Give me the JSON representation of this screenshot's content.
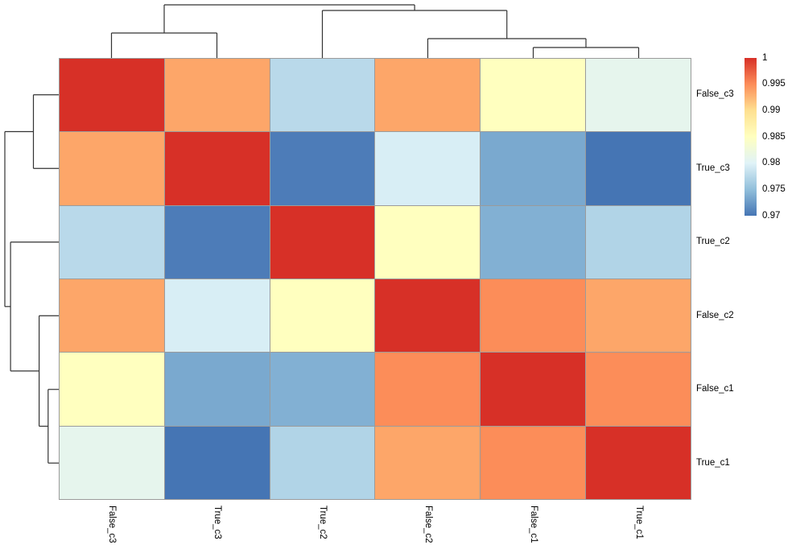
{
  "chart_data": {
    "type": "heatmap",
    "title": "",
    "description": "Clustered correlation heatmap (clustermap) with column dendrogram on top, row dendrogram on left, and a continuous colorbar legend on the right",
    "columns": [
      "False_c3",
      "True_c3",
      "True_c2",
      "False_c2",
      "False_c1",
      "True_c1"
    ],
    "rows": [
      "False_c3",
      "True_c3",
      "True_c2",
      "False_c2",
      "False_c1",
      "True_c1"
    ],
    "matrix": [
      [
        1.0,
        0.9935,
        0.9775,
        0.9935,
        0.985,
        0.981
      ],
      [
        0.9935,
        1.0,
        0.9705,
        0.9795,
        0.9735,
        0.97
      ],
      [
        0.9775,
        0.9705,
        1.0,
        0.985,
        0.974,
        0.977
      ],
      [
        0.9935,
        0.9795,
        0.985,
        1.0,
        0.995,
        0.9935
      ],
      [
        0.985,
        0.9735,
        0.974,
        0.995,
        1.0,
        0.995
      ],
      [
        0.981,
        0.97,
        0.977,
        0.9935,
        0.995,
        1.0
      ]
    ],
    "colormap": {
      "name": "RdYlBu_r",
      "domain": [
        0.97,
        1.0
      ],
      "stops": [
        "#4575B4",
        "#91BFDB",
        "#E0F3F8",
        "#FFFFBF",
        "#FEE090",
        "#FC8D59",
        "#D73027"
      ]
    },
    "colorbar": {
      "ticks": [
        "1",
        "0.995",
        "0.99",
        "0.985",
        "0.98",
        "0.975",
        "0.97"
      ],
      "tick_values": [
        1.0,
        0.995,
        0.99,
        0.985,
        0.98,
        0.975,
        0.97
      ]
    },
    "grid_line_color": "#9B9B9B",
    "dendrogram_line_color": "#333333",
    "col_dendrogram": {
      "leaf_order": [
        "False_c3",
        "True_c3",
        "True_c2",
        "False_c2",
        "False_c1",
        "True_c1"
      ],
      "merges": [
        [
          4,
          5,
          0.197
        ],
        [
          3,
          6,
          0.364
        ],
        [
          0,
          1,
          0.47
        ],
        [
          2,
          7,
          0.894
        ],
        [
          8,
          9,
          1.0
        ]
      ]
    },
    "row_dendrogram": {
      "leaf_order": [
        "False_c3",
        "True_c3",
        "True_c2",
        "False_c2",
        "False_c1",
        "True_c1"
      ],
      "merges": [
        [
          4,
          5,
          0.197
        ],
        [
          3,
          6,
          0.364
        ],
        [
          0,
          1,
          0.47
        ],
        [
          2,
          7,
          0.894
        ],
        [
          8,
          9,
          1.0
        ]
      ]
    }
  }
}
